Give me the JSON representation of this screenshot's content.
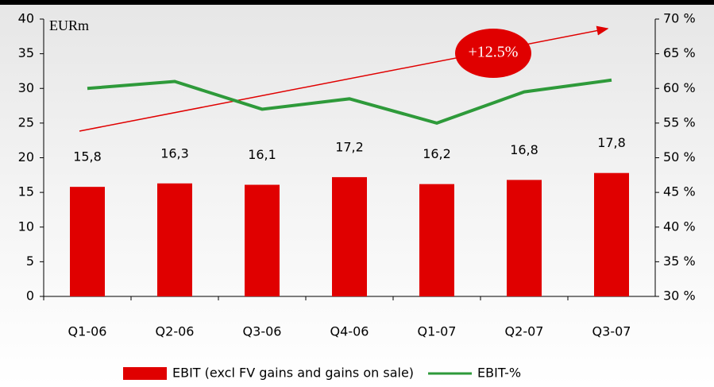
{
  "chart_data": {
    "type": "bar",
    "unit_label": "EURm",
    "annotation": "+12.5%",
    "categories": [
      "Q1-06",
      "Q2-06",
      "Q3-06",
      "Q4-06",
      "Q1-07",
      "Q2-07",
      "Q3-07"
    ],
    "series": [
      {
        "name": "EBIT (excl FV gains and gains on sale)",
        "type": "bar",
        "color": "#e00000",
        "values": [
          15.8,
          16.3,
          16.1,
          17.2,
          16.2,
          16.8,
          17.8
        ],
        "value_labels": [
          "15,8",
          "16,3",
          "16,1",
          "17,2",
          "16,2",
          "16,8",
          "17,8"
        ]
      },
      {
        "name": "EBIT-%",
        "type": "line",
        "axis": "y2",
        "color": "#2e9a3a",
        "values": [
          60,
          61,
          57,
          58.5,
          55,
          59.5,
          61.2
        ]
      }
    ],
    "ylim": [
      0,
      40
    ],
    "yticks": [
      0,
      5,
      10,
      15,
      20,
      25,
      30,
      35,
      40
    ],
    "y2lim": [
      30,
      70
    ],
    "y2ticks": [
      {
        "value": 30,
        "label": "30 %"
      },
      {
        "value": 35,
        "label": "35 %"
      },
      {
        "value": 40,
        "label": "40 %"
      },
      {
        "value": 45,
        "label": "45 %"
      },
      {
        "value": 50,
        "label": "50 %"
      },
      {
        "value": 55,
        "label": "55 %"
      },
      {
        "value": 60,
        "label": "60 %"
      },
      {
        "value": 65,
        "label": "65 %"
      },
      {
        "value": 70,
        "label": "70 %"
      }
    ],
    "legend": "bottom"
  }
}
